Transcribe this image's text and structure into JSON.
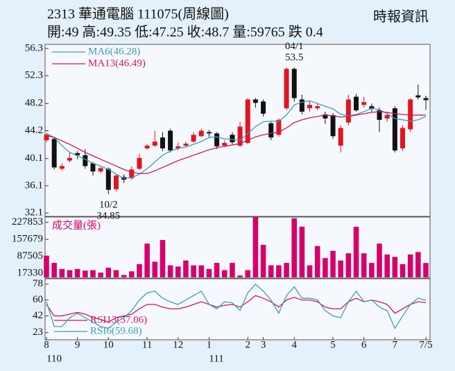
{
  "header": {
    "title": "2313  華通電腦 111075(周線圖)",
    "source": "時報資訊",
    "quote": "開:49 高:49.35 低:47.25 收:48.7 量:59765 跌 0.4"
  },
  "chart_data": [
    {
      "type": "candlestick",
      "categories": [
        null,
        null,
        null,
        null,
        null,
        null,
        null,
        null,
        null,
        null,
        null,
        null,
        null,
        null,
        null,
        null,
        null,
        null,
        null,
        null,
        null,
        null,
        null,
        null,
        null,
        null,
        null,
        null,
        null,
        null,
        null,
        null,
        null,
        null,
        null,
        null,
        null,
        null,
        null,
        null,
        null,
        null,
        null,
        null,
        null,
        null,
        null,
        null,
        null,
        null
      ],
      "open": [
        42.8,
        43,
        38.6,
        39.8,
        40.9,
        40.6,
        39.4,
        38.2,
        38.6,
        35.6,
        37.4,
        37.2,
        38.6,
        41.6,
        42,
        43.2,
        44.2,
        41.6,
        42,
        42.6,
        43.4,
        44,
        43.8,
        42,
        43.6,
        42,
        42.4,
        48.8,
        48.5,
        45.3,
        43.6,
        47.5,
        53.3,
        48.8,
        47.5,
        47.5,
        46.6,
        46.5,
        42,
        45.4,
        49.2,
        48,
        47.8,
        47.2,
        46,
        47.5,
        41.6,
        44.4,
        49.4,
        49
      ],
      "high": [
        43.8,
        43.2,
        39.4,
        41,
        41.2,
        41.5,
        39.6,
        38.9,
        38.8,
        37.8,
        37.8,
        39,
        40.8,
        42.3,
        44.2,
        44,
        44.5,
        42.5,
        42.6,
        44,
        44.5,
        44.3,
        44,
        42.8,
        44,
        45.5,
        49,
        49,
        48.8,
        45.5,
        46,
        53.5,
        53.5,
        49.5,
        48.6,
        48.2,
        47,
        46.8,
        45,
        49.5,
        49.6,
        49.2,
        48.2,
        47.6,
        46.9,
        47.8,
        45,
        49,
        51,
        49.35
      ],
      "low": [
        42.5,
        38.5,
        38.3,
        39.5,
        40,
        38.6,
        37.6,
        37.9,
        34.85,
        35.3,
        36.5,
        37,
        38.4,
        41.4,
        41.8,
        41.2,
        41,
        41.3,
        41.8,
        42.4,
        43.2,
        43.3,
        41.5,
        41.8,
        42.2,
        41.8,
        42.2,
        47.6,
        46.3,
        42.8,
        43.3,
        47.2,
        48.5,
        46.6,
        47,
        47.2,
        45.2,
        43,
        41,
        45,
        47,
        47.6,
        47,
        44,
        45.5,
        41,
        41.2,
        44,
        48.8,
        47.25
      ],
      "close": [
        43.6,
        38.8,
        39,
        40.2,
        40.6,
        39,
        38.2,
        38.7,
        35.5,
        37.6,
        37,
        38.5,
        40.2,
        42,
        42.6,
        41.6,
        41.3,
        41.9,
        42.3,
        43.6,
        44.2,
        43.8,
        41.9,
        42.4,
        42.5,
        44.8,
        48.8,
        48.3,
        46.7,
        43.2,
        45.8,
        53.3,
        49,
        47,
        48,
        47.8,
        46,
        43.4,
        44.6,
        48.8,
        47.2,
        48.4,
        47.4,
        45.8,
        46.5,
        41.3,
        44.6,
        48.8,
        49.1,
        48.7
      ],
      "up_color": "#e3141f",
      "down_color": "#111111",
      "series": [
        {
          "name": "MA6(46.28)",
          "color": "#3a9bbd",
          "values": [
            43.8,
            43.2,
            42,
            41,
            40.5,
            40,
            39.4,
            39,
            38.5,
            37.8,
            37.2,
            37.3,
            37.8,
            38.6,
            39.6,
            40.6,
            41.2,
            41.6,
            41.8,
            42.2,
            42.6,
            43.2,
            43.3,
            43,
            42.9,
            42.8,
            43.8,
            44.8,
            45.5,
            45.6,
            45.6,
            46.5,
            48,
            48.4,
            48.6,
            48.2,
            47.8,
            47.4,
            46.6,
            46.4,
            46.6,
            47,
            47.5,
            47.3,
            46.7,
            46,
            45.8,
            45.6,
            45.8,
            46.28
          ]
        },
        {
          "name": "MA13(46.49)",
          "color": "#d4145a",
          "values": [
            43.5,
            43.2,
            42.7,
            42.2,
            41.6,
            41,
            40.5,
            40,
            39.5,
            39,
            38.5,
            38.1,
            37.9,
            37.9,
            38.3,
            38.8,
            39.3,
            39.8,
            40.2,
            40.6,
            41,
            41.4,
            41.7,
            41.9,
            42.1,
            42.3,
            42.8,
            43.3,
            43.6,
            43.8,
            44,
            44.6,
            45.4,
            45.8,
            46.1,
            46.3,
            46.5,
            46.4,
            46.2,
            46.3,
            46.5,
            46.7,
            46.9,
            47,
            46.9,
            46.7,
            46.6,
            46.5,
            46.5,
            46.49
          ]
        }
      ],
      "ylim": [
        31.6,
        56.9
      ],
      "yticks": [
        32.1,
        36.1,
        40.1,
        44.2,
        48.2,
        52.3,
        56.3
      ],
      "grid": false,
      "annotations": [
        {
          "date": "04/1",
          "price": 53.5,
          "index": 32,
          "side": "above"
        },
        {
          "date": "10/2",
          "price": 34.85,
          "index": 8,
          "side": "below"
        }
      ]
    },
    {
      "type": "bar",
      "title": "成交量(張)",
      "categories": [
        null,
        null,
        null,
        null,
        null,
        null,
        null,
        null,
        null,
        null,
        null,
        null,
        null,
        null,
        null,
        null,
        null,
        null,
        null,
        null,
        null,
        null,
        null,
        null,
        null,
        null,
        null,
        null,
        null,
        null,
        null,
        null,
        null,
        null,
        null,
        null,
        null,
        null,
        null,
        null,
        null,
        null,
        null,
        null,
        null,
        null,
        null,
        null,
        null,
        null
      ],
      "values": [
        90000,
        60000,
        35000,
        30000,
        35000,
        28000,
        30000,
        20000,
        40000,
        30000,
        10000,
        25000,
        55000,
        140000,
        65000,
        155000,
        50000,
        45000,
        70000,
        50000,
        50000,
        35000,
        60000,
        30000,
        60000,
        8000,
        30000,
        250000,
        135000,
        50000,
        50000,
        60000,
        245000,
        210000,
        50000,
        130000,
        80000,
        110000,
        70000,
        100000,
        210000,
        100000,
        60000,
        140000,
        95000,
        85000,
        55000,
        95000,
        105000,
        59765
      ],
      "color": "#d6006c",
      "ylim": [
        0,
        250000
      ],
      "yticks": [
        17330,
        87505,
        157679,
        227853
      ]
    },
    {
      "type": "line",
      "categories": [
        null,
        null,
        null,
        null,
        null,
        null,
        null,
        null,
        null,
        null,
        null,
        null,
        null,
        null,
        null,
        null,
        null,
        null,
        null,
        null,
        null,
        null,
        null,
        null,
        null,
        null,
        null,
        null,
        null,
        null,
        null,
        null,
        null,
        null,
        null,
        null,
        null,
        null,
        null,
        null,
        null,
        null,
        null,
        null,
        null,
        null,
        null,
        null,
        null,
        null
      ],
      "series": [
        {
          "name": "RSI13(57.06)",
          "color": "#d4145a",
          "values": [
            55,
            42,
            42,
            44,
            46,
            44,
            40,
            38,
            35,
            40,
            42,
            44,
            50,
            55,
            55,
            52,
            50,
            50,
            52,
            55,
            58,
            55,
            52,
            54,
            55,
            52,
            58,
            65,
            62,
            58,
            52,
            60,
            63,
            60,
            60,
            58,
            52,
            50,
            50,
            58,
            62,
            58,
            60,
            58,
            55,
            45,
            50,
            55,
            58,
            57.06
          ]
        },
        {
          "name": "RSI6(59.68)",
          "color": "#3a9bbd",
          "values": [
            58,
            30,
            30,
            40,
            45,
            40,
            35,
            30,
            28,
            35,
            40,
            48,
            60,
            68,
            70,
            62,
            58,
            55,
            60,
            65,
            70,
            55,
            50,
            58,
            57,
            48,
            68,
            78,
            70,
            60,
            45,
            65,
            75,
            62,
            62,
            60,
            48,
            42,
            40,
            58,
            70,
            58,
            60,
            52,
            48,
            28,
            42,
            55,
            62,
            59.68
          ]
        }
      ],
      "ylim": [
        15,
        84
      ],
      "yticks": [
        23,
        42,
        60,
        78
      ],
      "xticks": [
        {
          "value": 0,
          "label": "8"
        },
        {
          "value": 4,
          "label": "9"
        },
        {
          "value": 8,
          "label": "10"
        },
        {
          "value": 13,
          "label": "11"
        },
        {
          "value": 17,
          "label": "12"
        },
        {
          "value": 21,
          "label": "1"
        },
        {
          "value": 26,
          "label": "2"
        },
        {
          "value": 28,
          "label": "3"
        },
        {
          "value": 32,
          "label": "4"
        },
        {
          "value": 37,
          "label": "5"
        },
        {
          "value": 41,
          "label": "6"
        },
        {
          "value": 45,
          "label": "7"
        },
        {
          "value": 49,
          "label": "7/5"
        }
      ],
      "year_ticks": [
        {
          "value": 0,
          "label": "110"
        },
        {
          "value": 21,
          "label": "111"
        }
      ]
    }
  ]
}
